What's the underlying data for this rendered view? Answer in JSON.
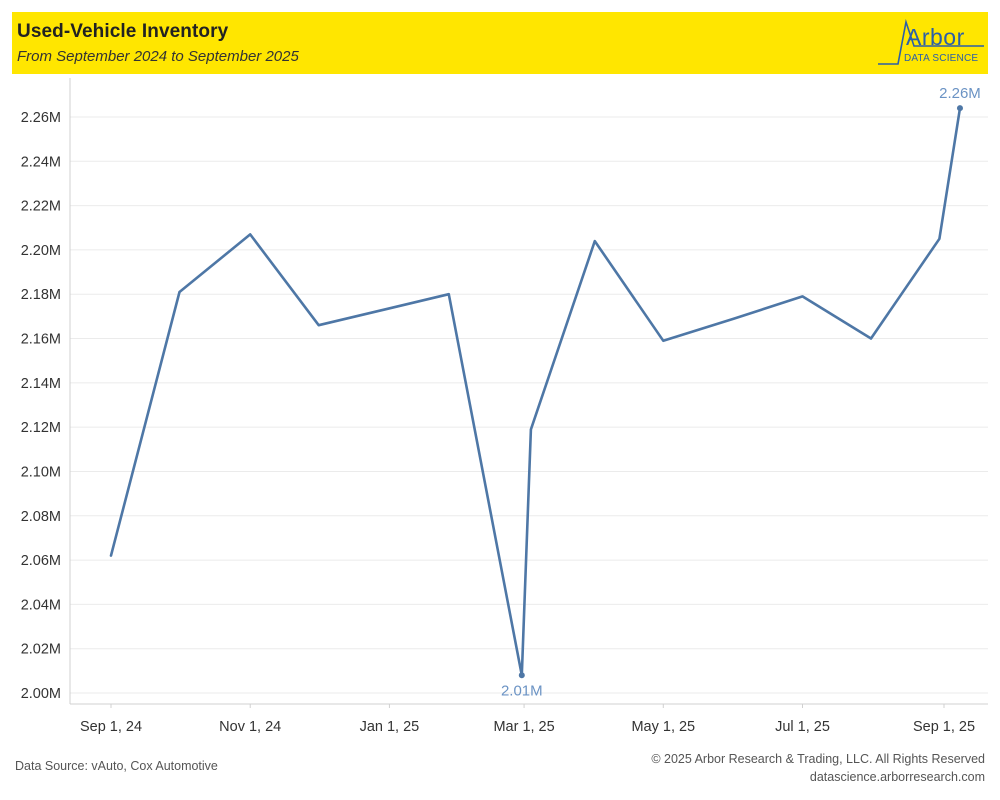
{
  "header": {
    "title": "Used-Vehicle Inventory",
    "subtitle": "From September 2024 to September 2025",
    "background_color": "#ffe600"
  },
  "logo": {
    "word": "Arbor",
    "sub": "DATA SCIENCE",
    "color": "#2b5fa8"
  },
  "footer": {
    "source": "Data Source: vAuto, Cox Automotive",
    "copyright": "© 2025 Arbor Research & Trading, LLC. All Rights Reserved",
    "url": "datascience.arborresearch.com"
  },
  "chart_data": {
    "type": "line",
    "title": "Used-Vehicle Inventory",
    "subtitle": "From September 2024 to September 2025",
    "xlabel": "",
    "ylabel": "",
    "ylim": [
      1995000,
      2275000
    ],
    "xlim": [
      "2024-08-16",
      "2025-09-24"
    ],
    "y_ticks": [
      2000000,
      2020000,
      2040000,
      2060000,
      2080000,
      2100000,
      2120000,
      2140000,
      2160000,
      2180000,
      2200000,
      2220000,
      2240000,
      2260000
    ],
    "y_tick_labels": [
      "2.00M",
      "2.02M",
      "2.04M",
      "2.06M",
      "2.08M",
      "2.10M",
      "2.12M",
      "2.14M",
      "2.16M",
      "2.18M",
      "2.20M",
      "2.22M",
      "2.24M",
      "2.26M"
    ],
    "x_ticks": [
      "2024-09-01",
      "2024-11-01",
      "2025-01-01",
      "2025-03-01",
      "2025-05-01",
      "2025-07-01",
      "2025-09-01"
    ],
    "x_tick_labels": [
      "Sep 1, 24",
      "Nov 1, 24",
      "Jan 1, 25",
      "Mar 1, 25",
      "May 1, 25",
      "Jul 1, 25",
      "Sep 1, 25"
    ],
    "grid": true,
    "line_color": "#4e77a6",
    "label_color": "#6b93c4",
    "series": [
      {
        "x": [
          "2024-09-01",
          "2024-10-01",
          "2024-11-01",
          "2024-12-01",
          "2025-01-27",
          "2025-02-28",
          "2025-03-04",
          "2025-04-01",
          "2025-05-01",
          "2025-06-01",
          "2025-07-01",
          "2025-07-31",
          "2025-08-30",
          "2025-09-08"
        ],
        "values": [
          2062000,
          2181000,
          2207000,
          2166000,
          2180000,
          2008000,
          2119000,
          2204000,
          2159000,
          2169000,
          2179000,
          2160000,
          2205000,
          2264000
        ]
      }
    ],
    "annotations": [
      {
        "x": "2025-02-28",
        "y": 2008000,
        "text": "2.01M",
        "position": "below"
      },
      {
        "x": "2025-09-08",
        "y": 2264000,
        "text": "2.26M",
        "position": "above"
      }
    ]
  }
}
